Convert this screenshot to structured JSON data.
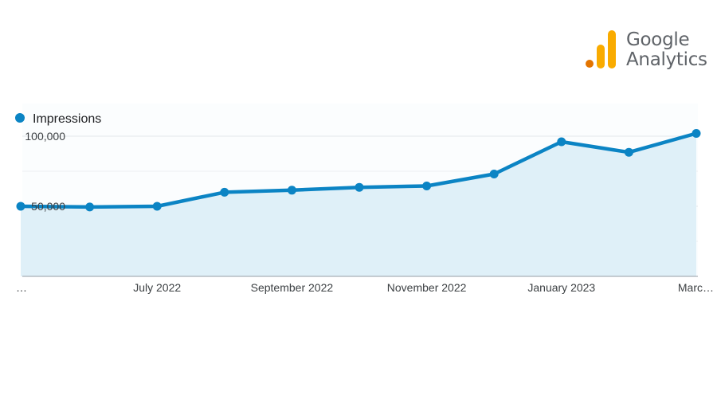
{
  "logo": {
    "word1": "Google",
    "word2": "Analytics",
    "colors": [
      "#e37400",
      "#f9ab00",
      "#f9ab00"
    ]
  },
  "chart_data": {
    "type": "area",
    "series": [
      {
        "name": "Impressions",
        "color": "#0b84c4",
        "fill": "#dff0f8",
        "x": [
          "2022-05",
          "2022-06",
          "2022-07",
          "2022-08",
          "2022-09",
          "2022-10",
          "2022-11",
          "2022-12",
          "2023-01",
          "2023-02",
          "2023-03"
        ],
        "values": [
          50000,
          49500,
          50000,
          60000,
          61500,
          63500,
          64500,
          73000,
          96000,
          88500,
          102000
        ]
      }
    ],
    "x_tick_labels": [
      "…",
      "July 2022",
      "September 2022",
      "November 2022",
      "January 2023",
      "Marc…"
    ],
    "y_tick_labels": [
      "100,000",
      "50,000"
    ],
    "y_ticks": [
      100000,
      50000
    ],
    "ylim": [
      0,
      110000
    ],
    "grid": true,
    "legend_placement": "top-left"
  }
}
